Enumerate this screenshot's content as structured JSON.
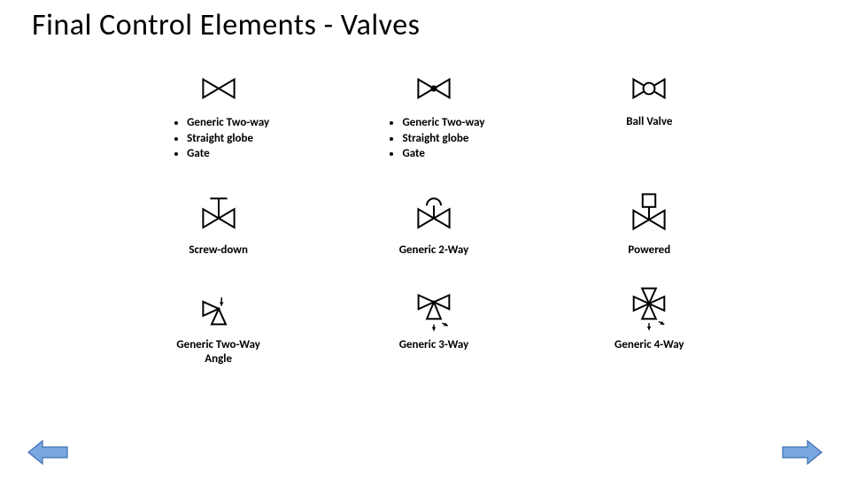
{
  "title": "Final Control Elements - Valves",
  "colors": {
    "background": "#ffffff",
    "text": "#000000",
    "symbol_stroke": "#000000",
    "nav_fill": "#7aa7e0",
    "nav_stroke": "#3f6fb0"
  },
  "title_fontsize": 34,
  "caption_fontsize": 13,
  "caption_fontweight": "700",
  "symbol_stroke_width": 2.5,
  "grid": {
    "rows": 3,
    "cols": 3
  },
  "cells": [
    {
      "id": "generic-two-way-1",
      "symbol": "bowtie",
      "bullets": [
        "Generic Two-way",
        "Straight globe",
        "Gate"
      ]
    },
    {
      "id": "generic-two-way-2",
      "symbol": "bowtie-dot",
      "bullets": [
        "Generic Two-way",
        "Straight globe",
        "Gate"
      ]
    },
    {
      "id": "ball-valve",
      "symbol": "bowtie-circle",
      "caption": "Ball Valve"
    },
    {
      "id": "screw-down",
      "symbol": "bowtie-screwdown",
      "caption": "Screw-down"
    },
    {
      "id": "generic-2way",
      "symbol": "bowtie-dome",
      "caption": "Generic 2-Way"
    },
    {
      "id": "powered",
      "symbol": "bowtie-square",
      "caption": "Powered"
    },
    {
      "id": "generic-two-way-angle",
      "symbol": "angle",
      "caption": "Generic Two-Way\nAngle"
    },
    {
      "id": "generic-3way",
      "symbol": "three-way",
      "caption": "Generic 3-Way"
    },
    {
      "id": "generic-4way",
      "symbol": "four-way",
      "caption": "Generic 4-Way"
    }
  ],
  "nav": {
    "prev": "Previous slide",
    "next": "Next slide"
  }
}
